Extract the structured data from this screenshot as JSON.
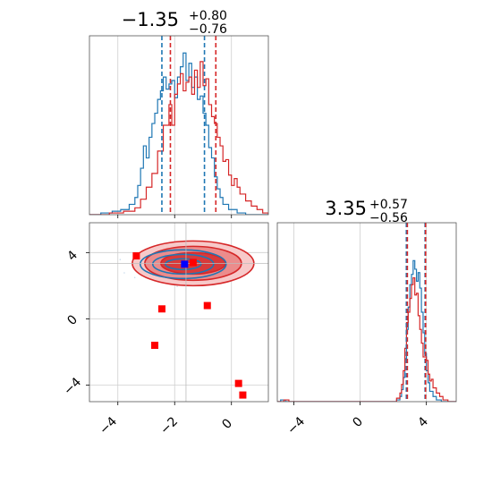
{
  "chart_data": [
    {
      "type": "histogram",
      "panel": "top-left",
      "title": {
        "value": "−1.35",
        "sup": "+0.80",
        "sub": "−0.76"
      },
      "xlim": [
        -5.0,
        1.3
      ],
      "ylim": [
        0,
        1.04
      ],
      "xticks": [
        -4,
        -2,
        0
      ],
      "grid": true,
      "series": [
        {
          "color": "#1f77b4",
          "bins": [
            [
              -5.0,
              0.0
            ],
            [
              -4.6,
              0.01
            ],
            [
              -4.2,
              0.02
            ],
            [
              -3.9,
              0.03
            ],
            [
              -3.6,
              0.06
            ],
            [
              -3.4,
              0.1
            ],
            [
              -3.3,
              0.17
            ],
            [
              -3.2,
              0.27
            ],
            [
              -3.1,
              0.4
            ],
            [
              -3.0,
              0.33
            ],
            [
              -2.9,
              0.45
            ],
            [
              -2.8,
              0.53
            ],
            [
              -2.7,
              0.59
            ],
            [
              -2.6,
              0.67
            ],
            [
              -2.5,
              0.72
            ],
            [
              -2.4,
              0.8
            ],
            [
              -2.3,
              0.73
            ],
            [
              -2.2,
              0.76
            ],
            [
              -2.1,
              0.78
            ],
            [
              -2.0,
              0.68
            ],
            [
              -1.9,
              0.8
            ],
            [
              -1.8,
              0.86
            ],
            [
              -1.7,
              0.94
            ],
            [
              -1.6,
              0.78
            ],
            [
              -1.5,
              0.88
            ],
            [
              -1.4,
              0.74
            ],
            [
              -1.3,
              0.8
            ],
            [
              -1.2,
              0.67
            ],
            [
              -1.1,
              0.69
            ],
            [
              -1.0,
              0.59
            ],
            [
              -0.9,
              0.52
            ],
            [
              -0.8,
              0.39
            ],
            [
              -0.7,
              0.33
            ],
            [
              -0.6,
              0.22
            ],
            [
              -0.5,
              0.15
            ],
            [
              -0.4,
              0.1
            ],
            [
              -0.3,
              0.06
            ],
            [
              -0.1,
              0.03
            ],
            [
              0.2,
              0.01
            ],
            [
              0.5,
              0.0
            ]
          ]
        },
        {
          "color": "#d62728",
          "bins": [
            [
              -5.0,
              0.0
            ],
            [
              -4.3,
              0.01
            ],
            [
              -3.8,
              0.02
            ],
            [
              -3.4,
              0.04
            ],
            [
              -3.2,
              0.09
            ],
            [
              -3.0,
              0.16
            ],
            [
              -2.8,
              0.24
            ],
            [
              -2.6,
              0.37
            ],
            [
              -2.4,
              0.52
            ],
            [
              -2.2,
              0.64
            ],
            [
              -2.1,
              0.52
            ],
            [
              -2.0,
              0.7
            ],
            [
              -1.9,
              0.76
            ],
            [
              -1.8,
              0.82
            ],
            [
              -1.7,
              0.72
            ],
            [
              -1.6,
              0.77
            ],
            [
              -1.5,
              0.8
            ],
            [
              -1.4,
              0.7
            ],
            [
              -1.3,
              0.84
            ],
            [
              -1.2,
              0.74
            ],
            [
              -1.1,
              0.89
            ],
            [
              -1.0,
              0.75
            ],
            [
              -0.9,
              0.79
            ],
            [
              -0.8,
              0.64
            ],
            [
              -0.7,
              0.57
            ],
            [
              -0.6,
              0.53
            ],
            [
              -0.5,
              0.45
            ],
            [
              -0.4,
              0.4
            ],
            [
              -0.3,
              0.31
            ],
            [
              -0.2,
              0.32
            ],
            [
              -0.1,
              0.23
            ],
            [
              0.0,
              0.17
            ],
            [
              0.1,
              0.21
            ],
            [
              0.2,
              0.16
            ],
            [
              0.3,
              0.12
            ],
            [
              0.5,
              0.08
            ],
            [
              0.7,
              0.05
            ],
            [
              0.9,
              0.03
            ],
            [
              1.1,
              0.01
            ],
            [
              1.3,
              0.0
            ]
          ]
        }
      ],
      "quantile_lines": [
        {
          "x": -2.45,
          "color": "#1f77b4"
        },
        {
          "x": -0.95,
          "color": "#1f77b4"
        },
        {
          "x": -2.15,
          "color": "#d62728"
        },
        {
          "x": -0.55,
          "color": "#d62728"
        }
      ]
    },
    {
      "type": "scatter",
      "panel": "bottom-left",
      "xlim": [
        -5.0,
        1.3
      ],
      "ylim": [
        -5.0,
        5.8
      ],
      "xticks": [
        -4,
        -2,
        0
      ],
      "yticks": [
        -4,
        0,
        4
      ],
      "xtick_labels": [
        "−4",
        "−2",
        "0"
      ],
      "ytick_labels": [
        "−4",
        "0",
        "4"
      ],
      "grid": true,
      "truth_grid": {
        "x": -1.6,
        "y": 3.35
      },
      "contour_centers": [
        {
          "color": "#1f77b4",
          "cx": -1.7,
          "cy": 3.3
        },
        {
          "color": "#d62728",
          "cx": -1.35,
          "cy": 3.35
        }
      ],
      "red_markers": [
        {
          "x": -3.35,
          "y": 3.8
        },
        {
          "x": -1.35,
          "y": 3.4
        },
        {
          "x": -2.45,
          "y": 0.6
        },
        {
          "x": -0.85,
          "y": 0.8
        },
        {
          "x": -2.7,
          "y": -1.6
        },
        {
          "x": 0.25,
          "y": -3.9
        },
        {
          "x": 0.4,
          "y": -4.6
        }
      ],
      "blue_markers": [
        {
          "x": -1.65,
          "y": 3.3
        }
      ]
    },
    {
      "type": "histogram",
      "panel": "bottom-right",
      "title": {
        "value": "3.35",
        "sup": "+0.57",
        "sub": "−0.56"
      },
      "xlim": [
        -5.0,
        5.8
      ],
      "ylim": [
        0,
        1.04
      ],
      "xticks": [
        -4,
        0,
        4
      ],
      "xtick_labels": [
        "−4",
        "0",
        "4"
      ],
      "grid": true,
      "series": [
        {
          "color": "#1f77b4",
          "bins": [
            [
              -5.0,
              0.0
            ],
            [
              -4.8,
              0.01
            ],
            [
              -4.5,
              0.0
            ],
            [
              2.0,
              0.0
            ],
            [
              2.2,
              0.01
            ],
            [
              2.4,
              0.03
            ],
            [
              2.5,
              0.07
            ],
            [
              2.6,
              0.14
            ],
            [
              2.7,
              0.25
            ],
            [
              2.8,
              0.42
            ],
            [
              2.9,
              0.55
            ],
            [
              3.0,
              0.68
            ],
            [
              3.1,
              0.74
            ],
            [
              3.2,
              0.82
            ],
            [
              3.3,
              0.77
            ],
            [
              3.4,
              0.7
            ],
            [
              3.5,
              0.75
            ],
            [
              3.6,
              0.66
            ],
            [
              3.7,
              0.52
            ],
            [
              3.8,
              0.4
            ],
            [
              3.9,
              0.28
            ],
            [
              4.0,
              0.18
            ],
            [
              4.1,
              0.11
            ],
            [
              4.2,
              0.06
            ],
            [
              4.4,
              0.03
            ],
            [
              4.6,
              0.01
            ],
            [
              4.9,
              0.0
            ]
          ]
        },
        {
          "color": "#d62728",
          "bins": [
            [
              -5.0,
              0.0
            ],
            [
              -4.6,
              0.01
            ],
            [
              -4.3,
              0.0
            ],
            [
              2.0,
              0.0
            ],
            [
              2.2,
              0.02
            ],
            [
              2.4,
              0.05
            ],
            [
              2.5,
              0.1
            ],
            [
              2.6,
              0.18
            ],
            [
              2.7,
              0.31
            ],
            [
              2.8,
              0.46
            ],
            [
              2.9,
              0.52
            ],
            [
              3.0,
              0.6
            ],
            [
              3.1,
              0.68
            ],
            [
              3.2,
              0.72
            ],
            [
              3.3,
              0.62
            ],
            [
              3.4,
              0.63
            ],
            [
              3.5,
              0.5
            ],
            [
              3.6,
              0.42
            ],
            [
              3.7,
              0.34
            ],
            [
              3.8,
              0.26
            ],
            [
              3.9,
              0.26
            ],
            [
              4.0,
              0.24
            ],
            [
              4.1,
              0.16
            ],
            [
              4.2,
              0.12
            ],
            [
              4.3,
              0.13
            ],
            [
              4.4,
              0.08
            ],
            [
              4.6,
              0.05
            ],
            [
              4.8,
              0.03
            ],
            [
              5.0,
              0.01
            ],
            [
              5.3,
              0.0
            ]
          ]
        }
      ],
      "quantile_lines": [
        {
          "x": 2.79,
          "color": "#1f77b4"
        },
        {
          "x": 3.92,
          "color": "#1f77b4"
        },
        {
          "x": 2.85,
          "color": "#d62728"
        },
        {
          "x": 3.95,
          "color": "#d62728"
        }
      ]
    }
  ]
}
